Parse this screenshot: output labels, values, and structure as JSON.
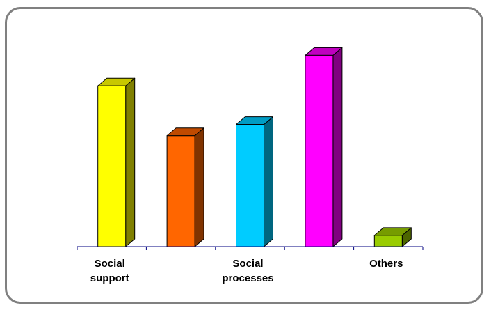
{
  "chart_data": {
    "type": "bar",
    "style": "3d-column",
    "categories": [
      "Social support",
      "",
      "Social processes",
      "",
      "Others"
    ],
    "tick_labels": [
      [
        "Social",
        "support"
      ],
      [],
      [
        "Social",
        "processes"
      ],
      [],
      [
        "Others"
      ]
    ],
    "values": [
      100,
      69,
      76,
      119,
      7
    ],
    "ylim": [
      0,
      130
    ],
    "colors": [
      {
        "front": "#ffff00",
        "top": "#c8c800",
        "side": "#808000"
      },
      {
        "front": "#ff6600",
        "top": "#c04a00",
        "side": "#803300"
      },
      {
        "front": "#00ccff",
        "top": "#009cc4",
        "side": "#006680"
      },
      {
        "front": "#ff00ff",
        "top": "#c000c0",
        "side": "#800080"
      },
      {
        "front": "#99cc00",
        "top": "#769c00",
        "side": "#4d6600"
      }
    ],
    "title": "",
    "xlabel": "",
    "ylabel": "",
    "grid": false,
    "legend": "none",
    "axis_color": "#000080"
  }
}
